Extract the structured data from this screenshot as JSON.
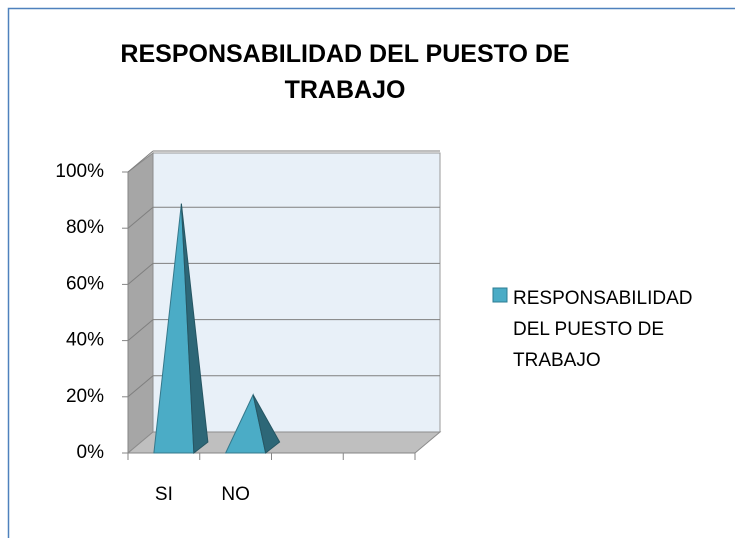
{
  "chart_data": {
    "type": "pyramid3d",
    "title": "RESPONSABILIDAD DEL PUESTO DE TRABAJO",
    "categories": [
      "SI",
      "NO",
      null,
      null
    ],
    "series": [
      {
        "name": "RESPONSABILIDAD DEL PUESTO DE TRABAJO",
        "color": "#4bacc6",
        "values": [
          85,
          17,
          null,
          null
        ]
      }
    ],
    "ylim": [
      0,
      100
    ],
    "yticks": [
      {
        "value": 0,
        "label": "0%"
      },
      {
        "value": 20,
        "label": "20%"
      },
      {
        "value": 40,
        "label": "40%"
      },
      {
        "value": 60,
        "label": "60%"
      },
      {
        "value": 80,
        "label": "80%"
      },
      {
        "value": 100,
        "label": "100%"
      }
    ],
    "grid": true,
    "legend": "right"
  }
}
